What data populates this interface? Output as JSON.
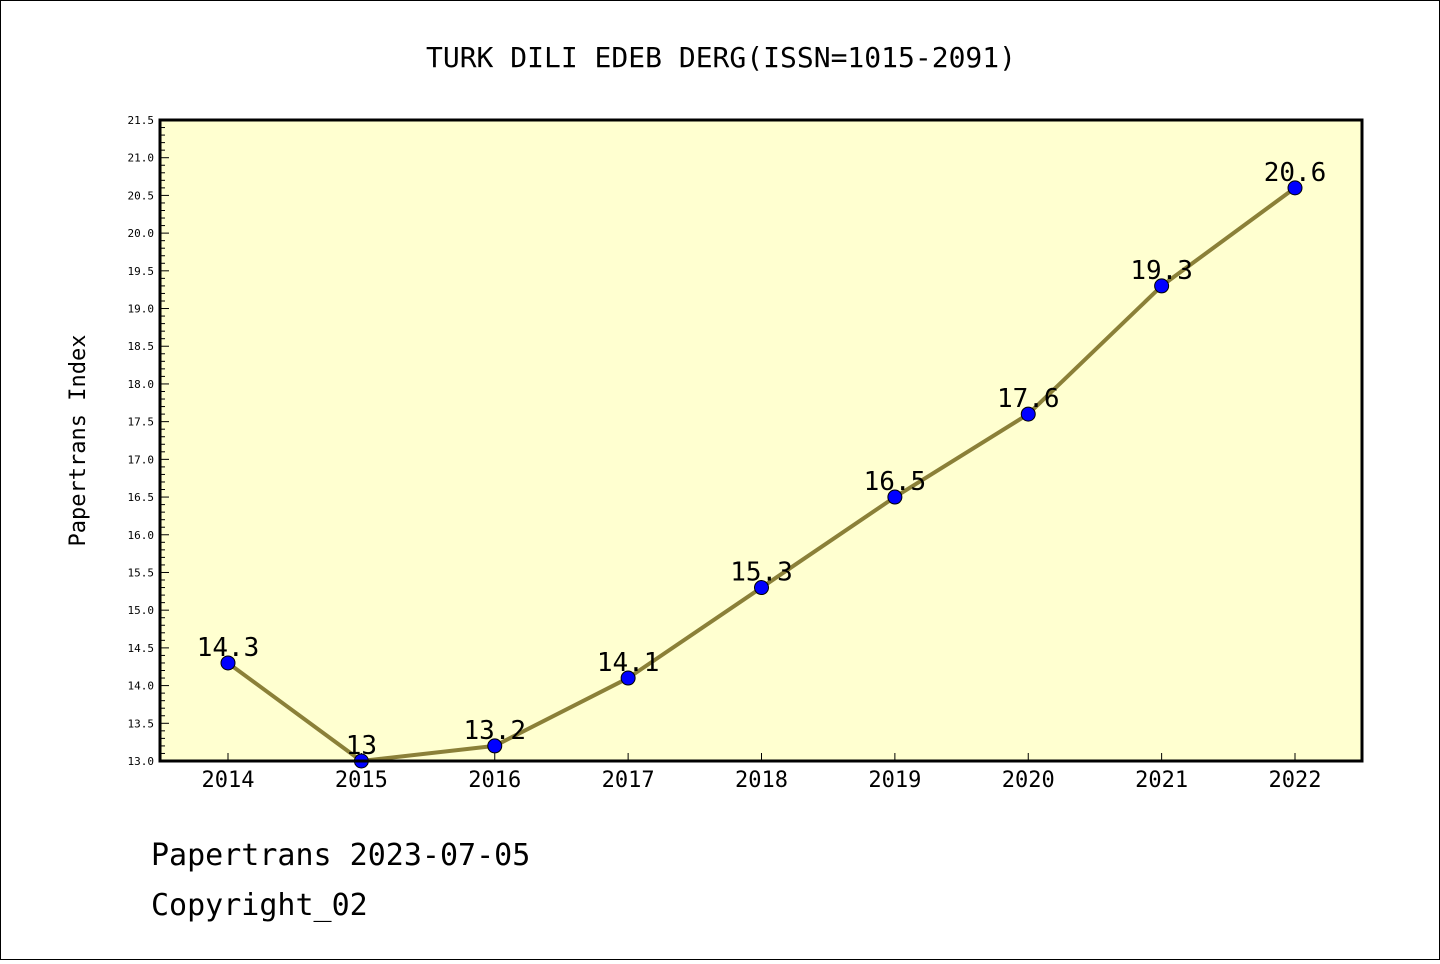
{
  "chart_data": {
    "type": "line",
    "title": "TURK DILI EDEB DERG(ISSN=1015-2091)",
    "xlabel": "",
    "ylabel": "Papertrans Index",
    "categories": [
      "2014",
      "2015",
      "2016",
      "2017",
      "2018",
      "2019",
      "2020",
      "2021",
      "2022"
    ],
    "values": [
      14.3,
      13,
      13.2,
      14.1,
      15.3,
      16.5,
      17.6,
      19.3,
      20.6
    ],
    "data_labels": [
      "14.3",
      "13",
      "13.2",
      "14.1",
      "15.3",
      "16.5",
      "17.6",
      "19.3",
      "20.6"
    ],
    "ylim": [
      13.0,
      21.5
    ],
    "yticks": [
      "13.0",
      "13.5",
      "14.0",
      "14.5",
      "15.0",
      "15.5",
      "16.0",
      "16.5",
      "17.0",
      "17.5",
      "18.0",
      "18.5",
      "19.0",
      "19.5",
      "20.0",
      "20.5",
      "21.0",
      "21.5"
    ],
    "grid": false,
    "colors": {
      "plot_background": "#ffffd0",
      "line": "#8b8038",
      "marker": "#0000ff"
    }
  },
  "footer": {
    "line1": "Papertrans 2023-07-05",
    "line2": "Copyright_02"
  }
}
